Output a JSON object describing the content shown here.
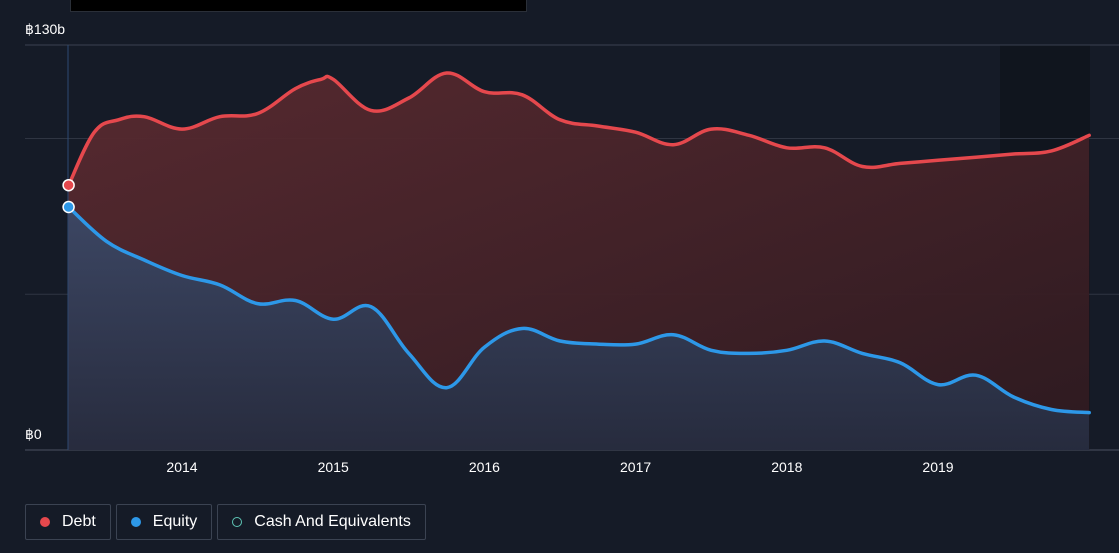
{
  "chart_data": {
    "type": "area",
    "y_tick_labels": [
      "฿130b",
      "฿0"
    ],
    "ylim": [
      0,
      130
    ],
    "xlim": [
      2013.25,
      2020.0
    ],
    "x_ticks": [
      2014,
      2015,
      2016,
      2017,
      2018,
      2019
    ],
    "x_tick_labels": [
      "2014",
      "2015",
      "2016",
      "2017",
      "2018",
      "2019"
    ],
    "grid": true,
    "legend_position": "bottom-left",
    "series": [
      {
        "name": "Debt",
        "color": "#e5484d",
        "points": [
          [
            2013.25,
            85
          ],
          [
            2013.42,
            102
          ],
          [
            2013.58,
            106
          ],
          [
            2013.75,
            107
          ],
          [
            2014.0,
            103
          ],
          [
            2014.25,
            107
          ],
          [
            2014.5,
            108
          ],
          [
            2014.75,
            116
          ],
          [
            2014.92,
            119
          ],
          [
            2015.0,
            119
          ],
          [
            2015.25,
            109
          ],
          [
            2015.5,
            113
          ],
          [
            2015.75,
            121
          ],
          [
            2016.0,
            115
          ],
          [
            2016.25,
            114
          ],
          [
            2016.5,
            106
          ],
          [
            2016.75,
            104
          ],
          [
            2017.0,
            102
          ],
          [
            2017.25,
            98
          ],
          [
            2017.5,
            103
          ],
          [
            2017.75,
            101
          ],
          [
            2018.0,
            97
          ],
          [
            2018.25,
            97
          ],
          [
            2018.5,
            91
          ],
          [
            2018.75,
            92
          ],
          [
            2019.0,
            93
          ],
          [
            2019.25,
            94
          ],
          [
            2019.5,
            95
          ],
          [
            2019.75,
            96
          ],
          [
            2020.0,
            101
          ]
        ]
      },
      {
        "name": "Equity",
        "color": "#2d98e8",
        "points": [
          [
            2013.25,
            78
          ],
          [
            2013.5,
            67
          ],
          [
            2013.75,
            61
          ],
          [
            2014.0,
            56
          ],
          [
            2014.25,
            53
          ],
          [
            2014.5,
            47
          ],
          [
            2014.75,
            48
          ],
          [
            2015.0,
            42
          ],
          [
            2015.25,
            46
          ],
          [
            2015.5,
            31
          ],
          [
            2015.75,
            20
          ],
          [
            2016.0,
            33
          ],
          [
            2016.25,
            39
          ],
          [
            2016.5,
            35
          ],
          [
            2016.75,
            34
          ],
          [
            2017.0,
            34
          ],
          [
            2017.25,
            37
          ],
          [
            2017.5,
            32
          ],
          [
            2017.75,
            31
          ],
          [
            2018.0,
            32
          ],
          [
            2018.25,
            35
          ],
          [
            2018.5,
            31
          ],
          [
            2018.75,
            28
          ],
          [
            2019.0,
            21
          ],
          [
            2019.25,
            24
          ],
          [
            2019.5,
            17
          ],
          [
            2019.75,
            13
          ],
          [
            2020.0,
            12
          ]
        ]
      },
      {
        "name": "Cash And Equivalents",
        "color": "#5ec5b5",
        "points": []
      }
    ]
  },
  "legend": {
    "items": [
      {
        "label": "Debt",
        "color": "#e5484d",
        "filled": true
      },
      {
        "label": "Equity",
        "color": "#2d98e8",
        "filled": true
      },
      {
        "label": "Cash And Equivalents",
        "color": "#5ec5b5",
        "filled": false
      }
    ]
  }
}
